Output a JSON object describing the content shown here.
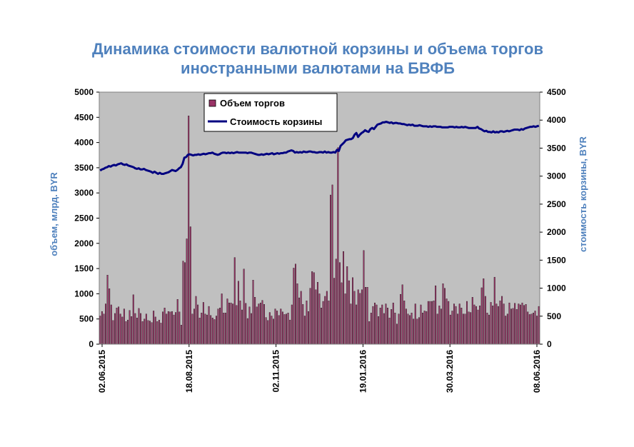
{
  "chart_data": {
    "type": "bar",
    "title_line1": "Динамика стоимости валютной корзины и объема торгов",
    "title_line2": "иностранными валютами на БВФБ",
    "ylabel": "объем, млрд. BYR",
    "y2label": "стоимость корзины, BYR",
    "ylim": [
      0,
      5000
    ],
    "y2lim": [
      0,
      4500
    ],
    "yticks": [
      "0",
      "500",
      "1000",
      "1500",
      "2000",
      "2500",
      "3000",
      "3500",
      "4000",
      "4500",
      "5000"
    ],
    "y2ticks": [
      "0",
      "500",
      "1000",
      "1500",
      "2000",
      "2500",
      "3000",
      "3500",
      "4000",
      "4500"
    ],
    "xticks": [
      "02.06.2015",
      "18.08.2015",
      "02.11.2015",
      "19.01.2016",
      "30.03.2016",
      "08.06.2016"
    ],
    "colors": {
      "bars": "#993366",
      "line": "#000080",
      "plot_bg": "#c0c0c0",
      "title": "#4f81bd"
    },
    "legend": {
      "position": "top-center"
    },
    "series": [
      {
        "name": "Объем торгов",
        "kind": "bar",
        "values": [
          560,
          650,
          600,
          800,
          1370,
          1100,
          780,
          470,
          610,
          720,
          740,
          600,
          540,
          700,
          450,
          480,
          670,
          550,
          980,
          610,
          520,
          710,
          610,
          450,
          500,
          600,
          470,
          460,
          430,
          660,
          540,
          450,
          480,
          420,
          640,
          720,
          600,
          650,
          640,
          650,
          580,
          630,
          890,
          640,
          380,
          1650,
          1620,
          2090,
          4530,
          2330,
          600,
          700,
          950,
          780,
          520,
          620,
          830,
          600,
          580,
          750,
          570,
          520,
          490,
          560,
          700,
          720,
          1000,
          620,
          620,
          900,
          820,
          820,
          800,
          1720,
          770,
          1250,
          860,
          680,
          1490,
          810,
          510,
          740,
          610,
          1270,
          930,
          740,
          800,
          820,
          870,
          790,
          530,
          470,
          630,
          560,
          500,
          700,
          660,
          570,
          700,
          640,
          590,
          600,
          620,
          480,
          780,
          1510,
          1590,
          1200,
          920,
          1050,
          790,
          560,
          860,
          650,
          1110,
          1440,
          1420,
          1080,
          1230,
          1000,
          720,
          850,
          950,
          1050,
          860,
          2960,
          3160,
          1310,
          1690,
          3900,
          1620,
          1220,
          1840,
          1000,
          1540,
          1260,
          800,
          1320,
          1050,
          780,
          1080,
          1010,
          1080,
          1860,
          1130,
          1130,
          450,
          620,
          750,
          820,
          780,
          550,
          720,
          780,
          610,
          800,
          720,
          520,
          690,
          820,
          620,
          400,
          600,
          990,
          1180,
          860,
          700,
          600,
          570,
          620,
          500,
          800,
          500,
          530,
          780,
          620,
          660,
          650,
          850,
          850,
          850,
          860,
          1160,
          600,
          760,
          700,
          1200,
          1110,
          900,
          850,
          580,
          660,
          800,
          750,
          600,
          800,
          720,
          600,
          600,
          850,
          640,
          630,
          930,
          780,
          750,
          680,
          760,
          1120,
          1300,
          950,
          620,
          580,
          830,
          760,
          1330,
          800,
          750,
          860,
          950,
          800,
          560,
          600,
          820,
          700,
          710,
          810,
          690,
          800,
          780,
          820,
          770,
          790,
          640,
          590,
          600,
          620,
          660,
          560,
          750
        ]
      },
      {
        "name": "Стоимость корзины",
        "kind": "line",
        "values": [
          3100,
          3120,
          3130,
          3150,
          3160,
          3180,
          3170,
          3190,
          3200,
          3190,
          3210,
          3220,
          3230,
          3210,
          3200,
          3210,
          3190,
          3180,
          3170,
          3160,
          3140,
          3130,
          3140,
          3120,
          3120,
          3130,
          3110,
          3100,
          3090,
          3080,
          3060,
          3080,
          3060,
          3040,
          3060,
          3040,
          3040,
          3050,
          3060,
          3070,
          3090,
          3110,
          3100,
          3090,
          3110,
          3140,
          3160,
          3220,
          3330,
          3340,
          3380,
          3390,
          3380,
          3370,
          3380,
          3380,
          3390,
          3380,
          3390,
          3400,
          3390,
          3400,
          3410,
          3410,
          3420,
          3400,
          3390,
          3380,
          3390,
          3410,
          3420,
          3420,
          3410,
          3420,
          3410,
          3420,
          3410,
          3420,
          3430,
          3420,
          3420,
          3420,
          3420,
          3420,
          3410,
          3420,
          3420,
          3410,
          3400,
          3390,
          3380,
          3380,
          3390,
          3380,
          3390,
          3400,
          3390,
          3400,
          3410,
          3390,
          3400,
          3410,
          3400,
          3410,
          3410,
          3420,
          3420,
          3440,
          3450,
          3460,
          3450,
          3420,
          3430,
          3420,
          3430,
          3420,
          3440,
          3430,
          3430,
          3440,
          3440,
          3430,
          3430,
          3420,
          3420,
          3430,
          3430,
          3420,
          3440,
          3420,
          3430,
          3420,
          3420,
          3430,
          3420,
          3470,
          3450,
          3540,
          3570,
          3600,
          3640,
          3650,
          3660,
          3660,
          3680,
          3740,
          3770,
          3700,
          3740,
          3770,
          3790,
          3820,
          3800,
          3790,
          3840,
          3860,
          3840,
          3880,
          3920,
          3930,
          3940,
          3960,
          3960,
          3970,
          3960,
          3950,
          3960,
          3940,
          3950,
          3950,
          3940,
          3940,
          3930,
          3930,
          3920,
          3910,
          3920,
          3910,
          3920,
          3900,
          3900,
          3900,
          3910,
          3900,
          3890,
          3890,
          3890,
          3880,
          3890,
          3880,
          3890,
          3890,
          3880,
          3880,
          3880,
          3870,
          3870,
          3870,
          3870,
          3880,
          3880,
          3880,
          3870,
          3880,
          3870,
          3870,
          3880,
          3870,
          3880,
          3870,
          3860,
          3860,
          3860,
          3860,
          3860,
          3880,
          3850,
          3840,
          3820,
          3800,
          3810,
          3790,
          3790,
          3780,
          3800,
          3780,
          3790,
          3780,
          3800,
          3800,
          3790,
          3800,
          3810,
          3800,
          3810,
          3820,
          3830,
          3830,
          3830,
          3820,
          3840,
          3830,
          3850,
          3860,
          3870,
          3880,
          3880,
          3890,
          3880,
          3890,
          3900
        ]
      }
    ]
  }
}
